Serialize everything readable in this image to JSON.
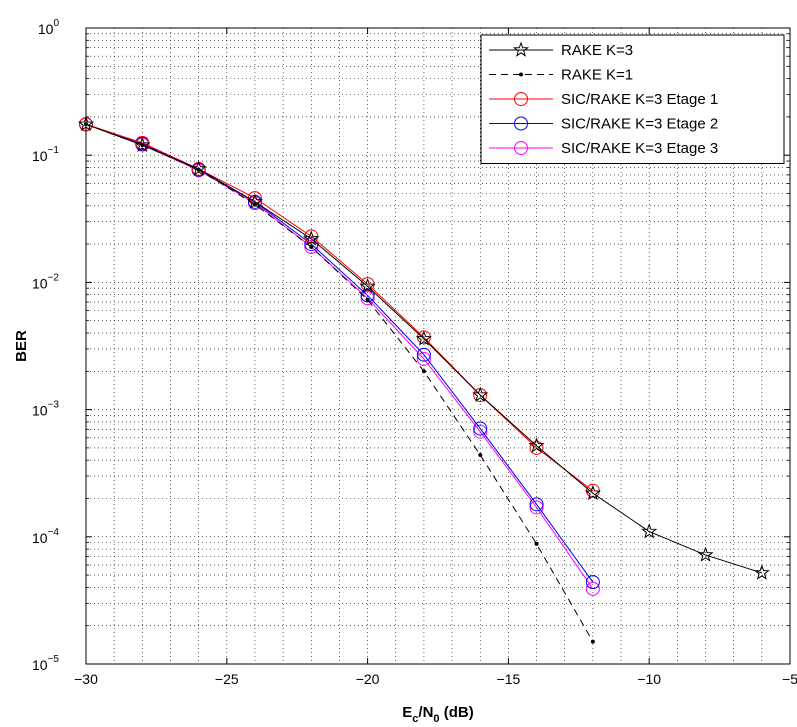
{
  "chart_data": {
    "type": "line",
    "title": "",
    "xlabel_main": "E",
    "xlabel_sub1": "c",
    "xlabel_mid": "/N",
    "xlabel_sub2": "0",
    "xlabel_tail": " (dB)",
    "ylabel": "BER",
    "xlim": [
      -30,
      -5
    ],
    "ylim": [
      1e-05,
      1
    ],
    "yscale": "log",
    "grid": true,
    "legend_position": "top-right",
    "x_ticks": [
      -30,
      -25,
      -20,
      -15,
      -10,
      -5
    ],
    "x_tick_labels": [
      "−30",
      "−25",
      "−20",
      "−15",
      "−10",
      "−5"
    ],
    "y_ticks": [
      {
        "value": 1e-05,
        "base": "10",
        "exp": "−5"
      },
      {
        "value": 0.0001,
        "base": "10",
        "exp": "−4"
      },
      {
        "value": 0.001,
        "base": "10",
        "exp": "−3"
      },
      {
        "value": 0.01,
        "base": "10",
        "exp": "−2"
      },
      {
        "value": 0.1,
        "base": "10",
        "exp": "−1"
      },
      {
        "value": 1,
        "base": "10",
        "exp": "0"
      }
    ],
    "series": [
      {
        "name": "RAKE K=3",
        "color": "#000000",
        "dash": "solid",
        "marker": "star",
        "x": [
          -30,
          -28,
          -26,
          -24,
          -22,
          -20,
          -18,
          -16,
          -14,
          -12,
          -10,
          -8,
          -6
        ],
        "y": [
          0.175,
          0.12,
          0.078,
          0.043,
          0.022,
          0.0093,
          0.0036,
          0.0013,
          0.00052,
          0.00022,
          0.00011,
          7.2e-05,
          5.2e-05
        ]
      },
      {
        "name": "RAKE K=1",
        "color": "#000000",
        "dash": "dashed",
        "marker": "dot",
        "x": [
          -30,
          -28,
          -26,
          -24,
          -22,
          -20,
          -18,
          -16,
          -14,
          -12
        ],
        "y": [
          0.175,
          0.12,
          0.077,
          0.041,
          0.019,
          0.0073,
          0.002,
          0.00044,
          8.8e-05,
          1.5e-05
        ]
      },
      {
        "name": "SIC/RAKE K=3 Etage 1",
        "color": "#ff0000",
        "dash": "solid",
        "marker": "circle",
        "x": [
          -30,
          -28,
          -26,
          -24,
          -22,
          -20,
          -18,
          -16,
          -14,
          -12
        ],
        "y": [
          0.175,
          0.125,
          0.078,
          0.046,
          0.023,
          0.0097,
          0.0037,
          0.0013,
          0.0005,
          0.00023
        ]
      },
      {
        "name": "SIC/RAKE K=3 Etage 2",
        "color": "#0000ff",
        "dash": "solid",
        "marker": "circle",
        "x": [
          -30,
          -28,
          -26,
          -24,
          -22,
          -20,
          -18,
          -16,
          -14,
          -12
        ],
        "y": [
          0.175,
          0.123,
          0.077,
          0.043,
          0.02,
          0.0079,
          0.0027,
          0.00071,
          0.00018,
          4.4e-05
        ]
      },
      {
        "name": "SIC/RAKE K=3 Etage 3",
        "color": "#ff00ff",
        "dash": "solid",
        "marker": "circle",
        "x": [
          -30,
          -28,
          -26,
          -24,
          -22,
          -20,
          -18,
          -16,
          -14,
          -12
        ],
        "y": [
          0.175,
          0.121,
          0.076,
          0.042,
          0.019,
          0.0075,
          0.0025,
          0.00067,
          0.00017,
          3.9e-05
        ]
      }
    ]
  }
}
